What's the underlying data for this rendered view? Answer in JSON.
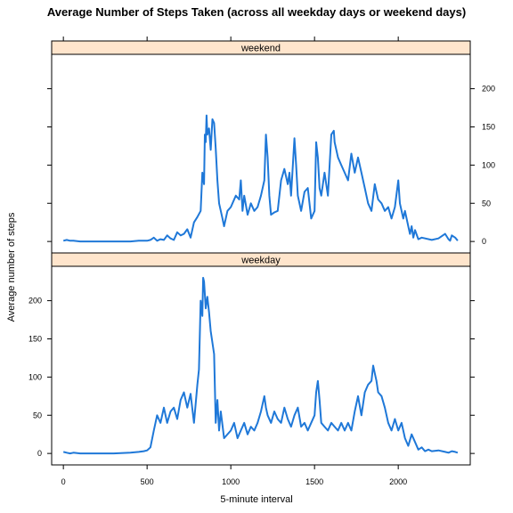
{
  "chart_data": {
    "type": "line",
    "title": "Average Number of Steps Taken (across all weekday days or weekend days)",
    "xlabel": "5-minute interval",
    "ylabel": "Average number of steps",
    "xlim": [
      -70,
      2430
    ],
    "ylim": [
      -15,
      245
    ],
    "xticks": [
      "0",
      "500",
      "1000",
      "1500",
      "2000"
    ],
    "xtick_values": [
      0,
      500,
      1000,
      1500,
      2000
    ],
    "yticks": [
      "0",
      "50",
      "100",
      "150",
      "200"
    ],
    "ytick_values": [
      0,
      50,
      100,
      150,
      200
    ],
    "line_color": "#1f78d8",
    "strip_color": "#ffe5cc",
    "panels": [
      {
        "name": "weekend",
        "points": [
          [
            0,
            1
          ],
          [
            20,
            2
          ],
          [
            40,
            1
          ],
          [
            60,
            1
          ],
          [
            100,
            0
          ],
          [
            200,
            0
          ],
          [
            300,
            0
          ],
          [
            400,
            0
          ],
          [
            450,
            1
          ],
          [
            500,
            1
          ],
          [
            520,
            2
          ],
          [
            540,
            5
          ],
          [
            560,
            1
          ],
          [
            580,
            3
          ],
          [
            600,
            2
          ],
          [
            620,
            8
          ],
          [
            640,
            4
          ],
          [
            660,
            2
          ],
          [
            680,
            12
          ],
          [
            700,
            8
          ],
          [
            720,
            10
          ],
          [
            740,
            16
          ],
          [
            760,
            5
          ],
          [
            780,
            25
          ],
          [
            800,
            32
          ],
          [
            820,
            40
          ],
          [
            830,
            90
          ],
          [
            840,
            75
          ],
          [
            845,
            140
          ],
          [
            850,
            130
          ],
          [
            855,
            165
          ],
          [
            860,
            140
          ],
          [
            870,
            148
          ],
          [
            880,
            120
          ],
          [
            890,
            160
          ],
          [
            900,
            155
          ],
          [
            910,
            122
          ],
          [
            920,
            80
          ],
          [
            930,
            50
          ],
          [
            940,
            40
          ],
          [
            950,
            30
          ],
          [
            960,
            20
          ],
          [
            980,
            40
          ],
          [
            1000,
            45
          ],
          [
            1030,
            60
          ],
          [
            1050,
            55
          ],
          [
            1060,
            80
          ],
          [
            1070,
            40
          ],
          [
            1080,
            60
          ],
          [
            1100,
            35
          ],
          [
            1120,
            50
          ],
          [
            1140,
            40
          ],
          [
            1160,
            45
          ],
          [
            1180,
            60
          ],
          [
            1200,
            80
          ],
          [
            1210,
            140
          ],
          [
            1220,
            110
          ],
          [
            1230,
            60
          ],
          [
            1240,
            35
          ],
          [
            1260,
            38
          ],
          [
            1280,
            40
          ],
          [
            1300,
            80
          ],
          [
            1320,
            95
          ],
          [
            1340,
            75
          ],
          [
            1350,
            90
          ],
          [
            1360,
            60
          ],
          [
            1380,
            135
          ],
          [
            1390,
            100
          ],
          [
            1400,
            60
          ],
          [
            1420,
            40
          ],
          [
            1440,
            65
          ],
          [
            1460,
            70
          ],
          [
            1480,
            30
          ],
          [
            1500,
            40
          ],
          [
            1510,
            130
          ],
          [
            1520,
            110
          ],
          [
            1530,
            70
          ],
          [
            1540,
            60
          ],
          [
            1560,
            90
          ],
          [
            1580,
            60
          ],
          [
            1600,
            140
          ],
          [
            1615,
            145
          ],
          [
            1620,
            130
          ],
          [
            1640,
            110
          ],
          [
            1660,
            100
          ],
          [
            1680,
            90
          ],
          [
            1700,
            80
          ],
          [
            1720,
            115
          ],
          [
            1740,
            90
          ],
          [
            1760,
            110
          ],
          [
            1780,
            90
          ],
          [
            1800,
            70
          ],
          [
            1820,
            50
          ],
          [
            1840,
            40
          ],
          [
            1860,
            75
          ],
          [
            1880,
            55
          ],
          [
            1900,
            50
          ],
          [
            1920,
            40
          ],
          [
            1940,
            45
          ],
          [
            1960,
            30
          ],
          [
            1980,
            45
          ],
          [
            2000,
            80
          ],
          [
            2010,
            50
          ],
          [
            2030,
            30
          ],
          [
            2040,
            40
          ],
          [
            2060,
            20
          ],
          [
            2070,
            10
          ],
          [
            2080,
            20
          ],
          [
            2090,
            5
          ],
          [
            2100,
            15
          ],
          [
            2120,
            3
          ],
          [
            2140,
            5
          ],
          [
            2200,
            2
          ],
          [
            2240,
            4
          ],
          [
            2280,
            10
          ],
          [
            2300,
            3
          ],
          [
            2310,
            1
          ],
          [
            2320,
            8
          ],
          [
            2340,
            5
          ],
          [
            2355,
            1
          ]
        ]
      },
      {
        "name": "weekday",
        "points": [
          [
            0,
            2
          ],
          [
            20,
            1
          ],
          [
            40,
            0
          ],
          [
            60,
            1
          ],
          [
            100,
            0
          ],
          [
            200,
            0
          ],
          [
            300,
            0
          ],
          [
            400,
            1
          ],
          [
            450,
            2
          ],
          [
            480,
            3
          ],
          [
            500,
            4
          ],
          [
            520,
            8
          ],
          [
            540,
            30
          ],
          [
            560,
            50
          ],
          [
            580,
            40
          ],
          [
            600,
            60
          ],
          [
            620,
            40
          ],
          [
            640,
            55
          ],
          [
            660,
            60
          ],
          [
            680,
            45
          ],
          [
            700,
            70
          ],
          [
            720,
            80
          ],
          [
            740,
            60
          ],
          [
            760,
            78
          ],
          [
            780,
            40
          ],
          [
            800,
            90
          ],
          [
            810,
            110
          ],
          [
            820,
            200
          ],
          [
            830,
            180
          ],
          [
            835,
            230
          ],
          [
            840,
            225
          ],
          [
            850,
            190
          ],
          [
            860,
            205
          ],
          [
            870,
            185
          ],
          [
            880,
            160
          ],
          [
            900,
            130
          ],
          [
            910,
            40
          ],
          [
            920,
            70
          ],
          [
            930,
            30
          ],
          [
            940,
            55
          ],
          [
            960,
            20
          ],
          [
            1000,
            30
          ],
          [
            1020,
            40
          ],
          [
            1040,
            20
          ],
          [
            1060,
            30
          ],
          [
            1080,
            40
          ],
          [
            1100,
            25
          ],
          [
            1120,
            35
          ],
          [
            1140,
            30
          ],
          [
            1160,
            40
          ],
          [
            1180,
            55
          ],
          [
            1200,
            75
          ],
          [
            1210,
            60
          ],
          [
            1220,
            50
          ],
          [
            1240,
            40
          ],
          [
            1260,
            55
          ],
          [
            1280,
            45
          ],
          [
            1300,
            40
          ],
          [
            1320,
            60
          ],
          [
            1340,
            45
          ],
          [
            1360,
            35
          ],
          [
            1380,
            50
          ],
          [
            1400,
            60
          ],
          [
            1420,
            35
          ],
          [
            1440,
            40
          ],
          [
            1460,
            30
          ],
          [
            1480,
            40
          ],
          [
            1500,
            50
          ],
          [
            1510,
            80
          ],
          [
            1520,
            95
          ],
          [
            1530,
            70
          ],
          [
            1540,
            40
          ],
          [
            1560,
            35
          ],
          [
            1580,
            30
          ],
          [
            1600,
            40
          ],
          [
            1620,
            35
          ],
          [
            1640,
            30
          ],
          [
            1660,
            40
          ],
          [
            1680,
            30
          ],
          [
            1700,
            40
          ],
          [
            1720,
            30
          ],
          [
            1740,
            55
          ],
          [
            1760,
            75
          ],
          [
            1780,
            50
          ],
          [
            1800,
            80
          ],
          [
            1820,
            90
          ],
          [
            1840,
            95
          ],
          [
            1850,
            115
          ],
          [
            1860,
            105
          ],
          [
            1870,
            95
          ],
          [
            1880,
            80
          ],
          [
            1900,
            75
          ],
          [
            1920,
            60
          ],
          [
            1940,
            40
          ],
          [
            1960,
            30
          ],
          [
            1980,
            45
          ],
          [
            2000,
            30
          ],
          [
            2020,
            40
          ],
          [
            2040,
            20
          ],
          [
            2060,
            10
          ],
          [
            2080,
            25
          ],
          [
            2100,
            15
          ],
          [
            2120,
            5
          ],
          [
            2140,
            8
          ],
          [
            2160,
            3
          ],
          [
            2180,
            5
          ],
          [
            2200,
            3
          ],
          [
            2240,
            4
          ],
          [
            2280,
            2
          ],
          [
            2300,
            1
          ],
          [
            2320,
            3
          ],
          [
            2340,
            2
          ],
          [
            2355,
            1
          ]
        ]
      }
    ]
  }
}
